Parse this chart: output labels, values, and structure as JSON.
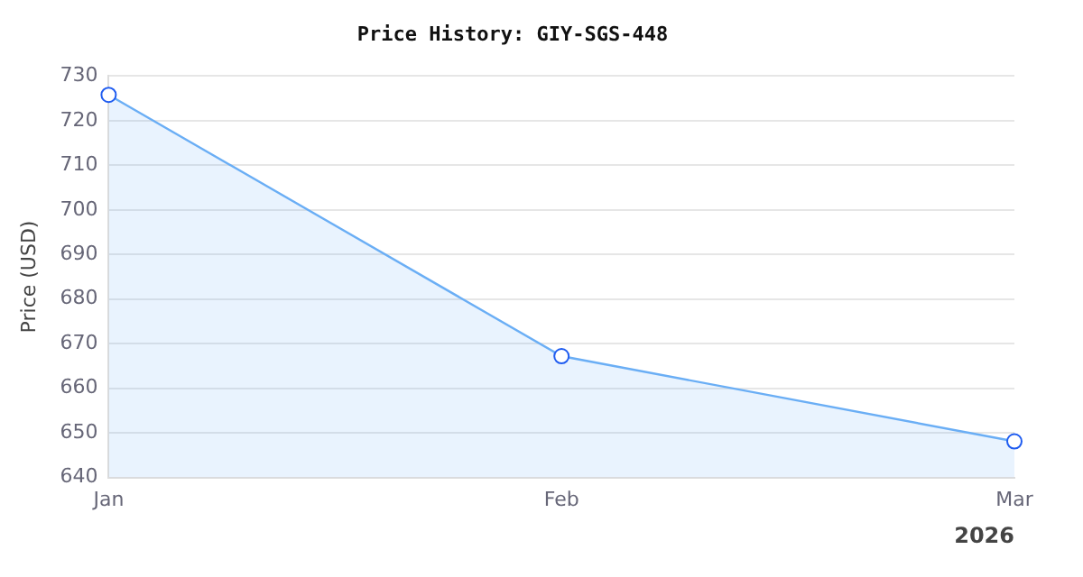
{
  "chart_data": {
    "type": "area",
    "title": "Price History: GIY-SGS-448",
    "ylabel": "Price (USD)",
    "categories": [
      "Jan",
      "Feb",
      "Mar"
    ],
    "series": [
      {
        "color": "#6aaef5",
        "values": [
          725.8,
          667.2,
          648.1
        ]
      }
    ],
    "ylim": [
      640,
      730
    ],
    "yticks": [
      640,
      650,
      660,
      670,
      680,
      690,
      700,
      710,
      720,
      730
    ],
    "annotations": [
      "2026"
    ],
    "grid": "y",
    "legend": false,
    "marker": "circle"
  }
}
